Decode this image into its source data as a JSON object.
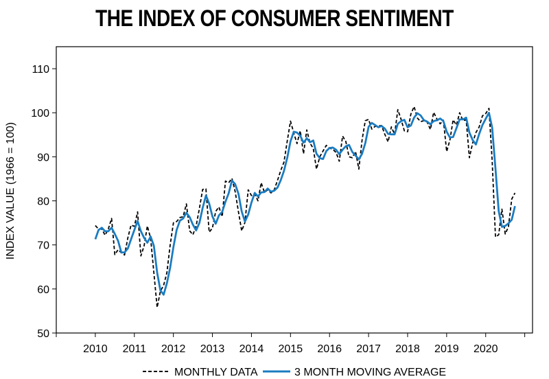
{
  "chart_data": {
    "type": "line",
    "title": "THE INDEX OF CONSUMER SENTIMENT",
    "xlabel": "",
    "ylabel": "INDEX VALUE (1966 = 100)",
    "xlim": [
      2009.0,
      2021.2
    ],
    "ylim": [
      50,
      115
    ],
    "x_ticks": [
      2010,
      2011,
      2012,
      2013,
      2014,
      2015,
      2016,
      2017,
      2018,
      2019,
      2020
    ],
    "y_ticks": [
      50,
      60,
      70,
      80,
      90,
      100,
      110
    ],
    "grid": false,
    "legend": "bottom",
    "series": [
      {
        "name": "MONTHLY DATA",
        "color": "#000000",
        "style": "dashed",
        "x_start": 2010.0,
        "step": 0.0833333,
        "values": [
          74.4,
          73.6,
          73.6,
          72.2,
          73.6,
          76.0,
          67.8,
          68.9,
          68.2,
          67.7,
          71.6,
          74.5,
          74.2,
          77.5,
          67.5,
          69.8,
          74.3,
          71.5,
          63.7,
          55.8,
          59.5,
          60.8,
          63.7,
          69.9,
          75.0,
          75.3,
          76.2,
          76.4,
          79.3,
          73.2,
          72.3,
          74.3,
          78.3,
          82.6,
          82.7,
          72.9,
          73.8,
          77.6,
          78.6,
          76.4,
          84.5,
          84.1,
          85.1,
          82.1,
          77.5,
          73.2,
          75.1,
          82.5,
          81.2,
          81.6,
          80.0,
          84.1,
          81.9,
          82.5,
          81.8,
          82.5,
          84.6,
          86.9,
          88.8,
          93.6,
          98.1,
          95.4,
          93.0,
          95.9,
          90.7,
          96.1,
          93.1,
          91.9,
          87.2,
          90.0,
          91.3,
          92.6,
          92.0,
          91.7,
          91.0,
          89.0,
          94.7,
          93.5,
          90.0,
          89.8,
          91.2,
          87.2,
          93.8,
          98.2,
          98.5,
          96.3,
          96.9,
          97.0,
          97.1,
          95.1,
          93.4,
          96.8,
          95.1,
          100.7,
          98.5,
          95.9,
          95.7,
          99.7,
          101.4,
          98.8,
          98.0,
          98.2,
          97.9,
          96.2,
          100.1,
          98.6,
          97.5,
          98.3,
          91.2,
          93.8,
          98.4,
          97.2,
          100.0,
          98.2,
          98.4,
          89.8,
          93.2,
          95.5,
          96.8,
          99.3,
          99.8,
          101.0,
          89.1,
          71.8,
          72.3,
          78.1,
          72.5,
          74.1,
          80.4,
          81.8
        ]
      },
      {
        "name": "3 MONTH MOVING AVERAGE",
        "color": "#1a7cc1",
        "style": "solid",
        "x_start": 2010.0,
        "step": 0.0833333,
        "values": [
          71.3,
          73.4,
          73.9,
          73.1,
          73.1,
          73.9,
          72.5,
          70.9,
          68.3,
          68.3,
          69.2,
          71.3,
          73.4,
          75.4,
          73.1,
          71.6,
          70.5,
          71.9,
          69.8,
          63.7,
          59.7,
          58.7,
          61.3,
          64.8,
          69.5,
          73.4,
          75.5,
          76.0,
          77.3,
          76.3,
          74.6,
          73.3,
          75.0,
          78.4,
          81.2,
          79.4,
          76.5,
          74.8,
          76.7,
          77.5,
          79.8,
          81.7,
          84.6,
          83.8,
          81.6,
          77.6,
          75.3,
          76.9,
          79.6,
          81.8,
          81.0,
          81.9,
          82.0,
          82.8,
          82.1,
          82.3,
          83.0,
          84.7,
          86.8,
          89.8,
          93.5,
          95.7,
          95.5,
          94.8,
          93.2,
          94.2,
          93.3,
          93.7,
          90.7,
          89.7,
          89.5,
          91.3,
          92.0,
          92.1,
          91.6,
          90.6,
          91.6,
          92.4,
          92.7,
          91.1,
          90.3,
          89.4,
          90.7,
          93.1,
          96.8,
          97.7,
          97.2,
          96.7,
          97.0,
          96.4,
          95.2,
          95.1,
          95.1,
          97.5,
          98.1,
          98.4,
          96.7,
          97.1,
          98.9,
          99.9,
          99.4,
          98.3,
          98.0,
          97.4,
          98.1,
          98.3,
          98.7,
          98.1,
          95.7,
          94.4,
          94.5,
          96.5,
          98.5,
          98.5,
          98.9,
          95.5,
          93.8,
          92.8,
          95.2,
          97.2,
          98.6,
          100.0,
          96.6,
          87.3,
          77.7,
          74.1,
          74.3,
          74.9,
          75.7,
          78.8
        ]
      }
    ]
  }
}
